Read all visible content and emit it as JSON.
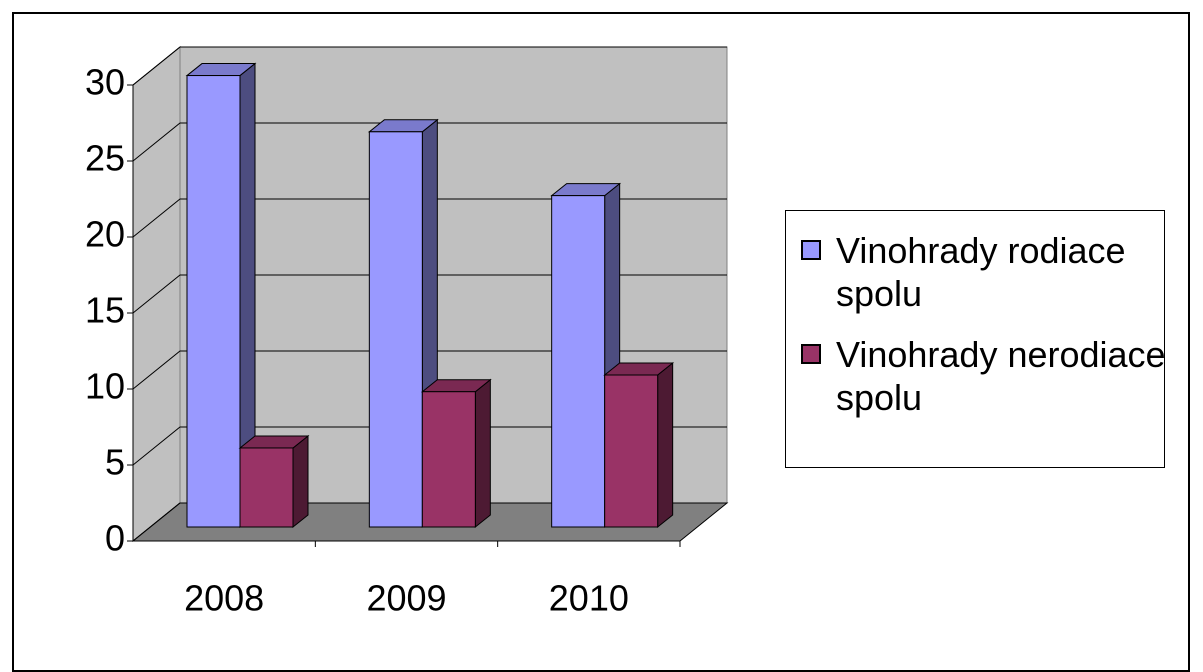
{
  "chart_data": {
    "type": "bar3d",
    "categories": [
      "2008",
      "2009",
      "2010"
    ],
    "series": [
      {
        "name": "Vinohrady rodiace spolu",
        "color": "#9999ff",
        "values": [
          29.7,
          26.0,
          21.8
        ]
      },
      {
        "name": "Vinohrady nerodiace spolu",
        "color": "#993366",
        "values": [
          5.2,
          8.9,
          10.0
        ]
      }
    ],
    "ylim": [
      0,
      30
    ],
    "yticks": [
      0,
      5,
      10,
      15,
      20,
      25,
      30
    ],
    "grid": true,
    "legend": "right"
  }
}
